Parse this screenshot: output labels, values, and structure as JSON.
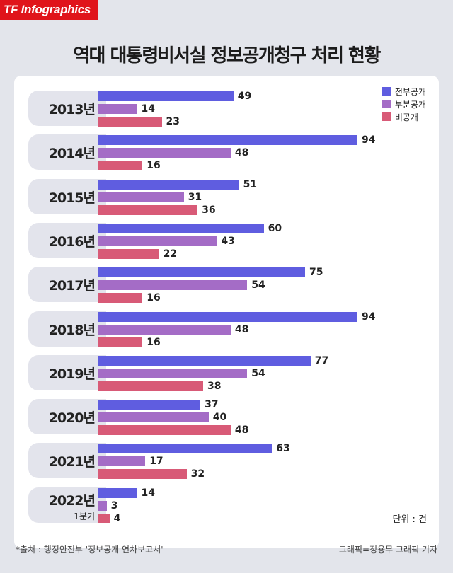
{
  "brand": "TF Infographics",
  "title": "역대 대통령비서실 정보공개청구 처리 현황",
  "unit": "단위 : 건",
  "source": "*출처 : 행정안전부 '정보공개 연차보고서'",
  "credit": "그래픽=정용무 그래픽 기자",
  "chart_data": {
    "type": "bar",
    "orientation": "horizontal",
    "title": "역대 대통령비서실 정보공개청구 처리 현황",
    "categories": [
      "2013년",
      "2014년",
      "2015년",
      "2016년",
      "2017년",
      "2018년",
      "2019년",
      "2020년",
      "2021년",
      "2022년"
    ],
    "category_sublabels": {
      "2022년": "1분기"
    },
    "series": [
      {
        "name": "전부공개",
        "color": "#5f5de0",
        "values": [
          49,
          94,
          51,
          60,
          75,
          94,
          77,
          37,
          63,
          14
        ]
      },
      {
        "name": "부분공개",
        "color": "#a46cc6",
        "values": [
          14,
          48,
          31,
          43,
          54,
          48,
          54,
          40,
          17,
          3
        ]
      },
      {
        "name": "비공개",
        "color": "#d85a77",
        "values": [
          23,
          16,
          36,
          22,
          16,
          16,
          38,
          48,
          32,
          4
        ]
      }
    ],
    "xlim": [
      0,
      94
    ],
    "legend": "top-right",
    "grid": false
  }
}
